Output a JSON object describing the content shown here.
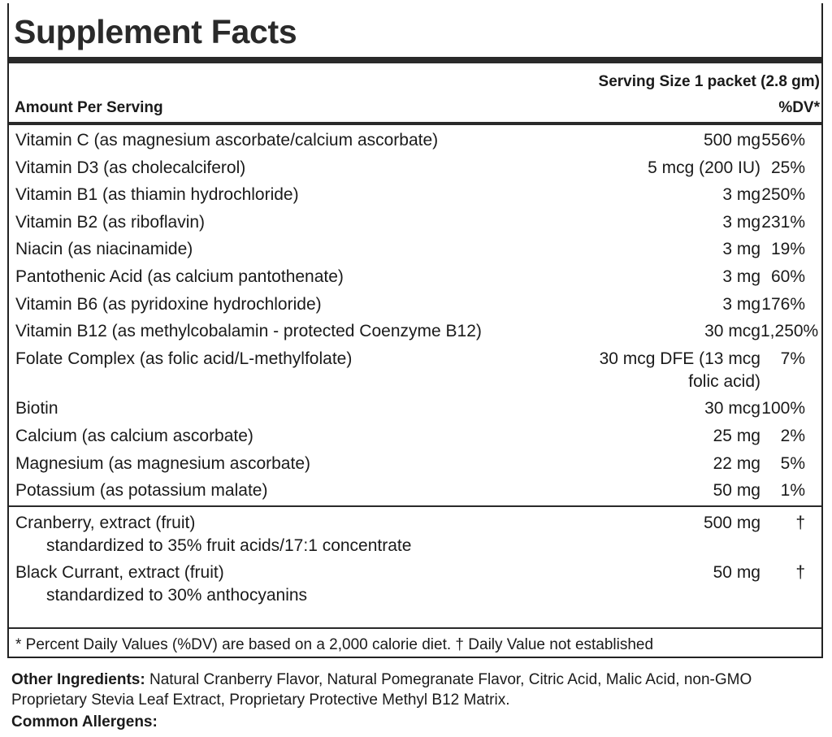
{
  "title": "Supplement Facts",
  "serving_size": "Serving Size 1 packet (2.8 gm)",
  "amount_header": "Amount Per Serving",
  "dv_header": "%DV*",
  "nutrients": [
    {
      "name": "Vitamin C (as magnesium ascorbate/calcium ascorbate)",
      "amount": "500 mg",
      "dv": "556%"
    },
    {
      "name": "Vitamin D3 (as cholecalciferol)",
      "amount": "5 mcg (200 IU)",
      "dv": "25%"
    },
    {
      "name": "Vitamin B1 (as thiamin hydrochloride)",
      "amount": "3 mg",
      "dv": "250%"
    },
    {
      "name": "Vitamin B2 (as riboflavin)",
      "amount": "3 mg",
      "dv": "231%"
    },
    {
      "name": "Niacin (as niacinamide)",
      "amount": "3 mg",
      "dv": "19%"
    },
    {
      "name": "Pantothenic Acid (as calcium pantothenate)",
      "amount": "3 mg",
      "dv": "60%"
    },
    {
      "name": "Vitamin B6 (as pyridoxine hydrochloride)",
      "amount": "3 mg",
      "dv": "176%"
    },
    {
      "name": "Vitamin B12 (as methylcobalamin - protected Coenzyme B12)",
      "amount": "30 mcg",
      "dv": "1,250%"
    },
    {
      "name": "Folate Complex (as folic acid/L-methylfolate)",
      "amount": "30 mcg DFE (13 mcg folic acid)",
      "dv": "7%"
    },
    {
      "name": "Biotin",
      "amount": "30 mcg",
      "dv": "100%"
    },
    {
      "name": "Calcium (as calcium ascorbate)",
      "amount": "25 mg",
      "dv": "2%"
    },
    {
      "name": "Magnesium (as magnesium ascorbate)",
      "amount": "22 mg",
      "dv": "5%"
    },
    {
      "name": "Potassium (as potassium malate)",
      "amount": "50 mg",
      "dv": "1%"
    }
  ],
  "botanicals": [
    {
      "name": "Cranberry, extract (fruit)",
      "detail": "standardized to 35% fruit acids/17:1 concentrate",
      "amount": "500 mg",
      "dv": "†"
    },
    {
      "name": "Black Currant, extract (fruit)",
      "detail": "standardized to 30% anthocyanins",
      "amount": "50 mg",
      "dv": "†"
    }
  ],
  "footnote": "* Percent Daily Values (%DV) are based on a 2,000 calorie diet. † Daily Value not established",
  "other_ingredients": {
    "label": "Other Ingredients:",
    "text": "Natural Cranberry Flavor, Natural Pomegranate Flavor, Citric Acid, Malic Acid, non-GMO Proprietary Stevia Leaf Extract, Proprietary Protective Methyl B12 Matrix."
  },
  "common_allergens": {
    "label": "Common Allergens:"
  }
}
